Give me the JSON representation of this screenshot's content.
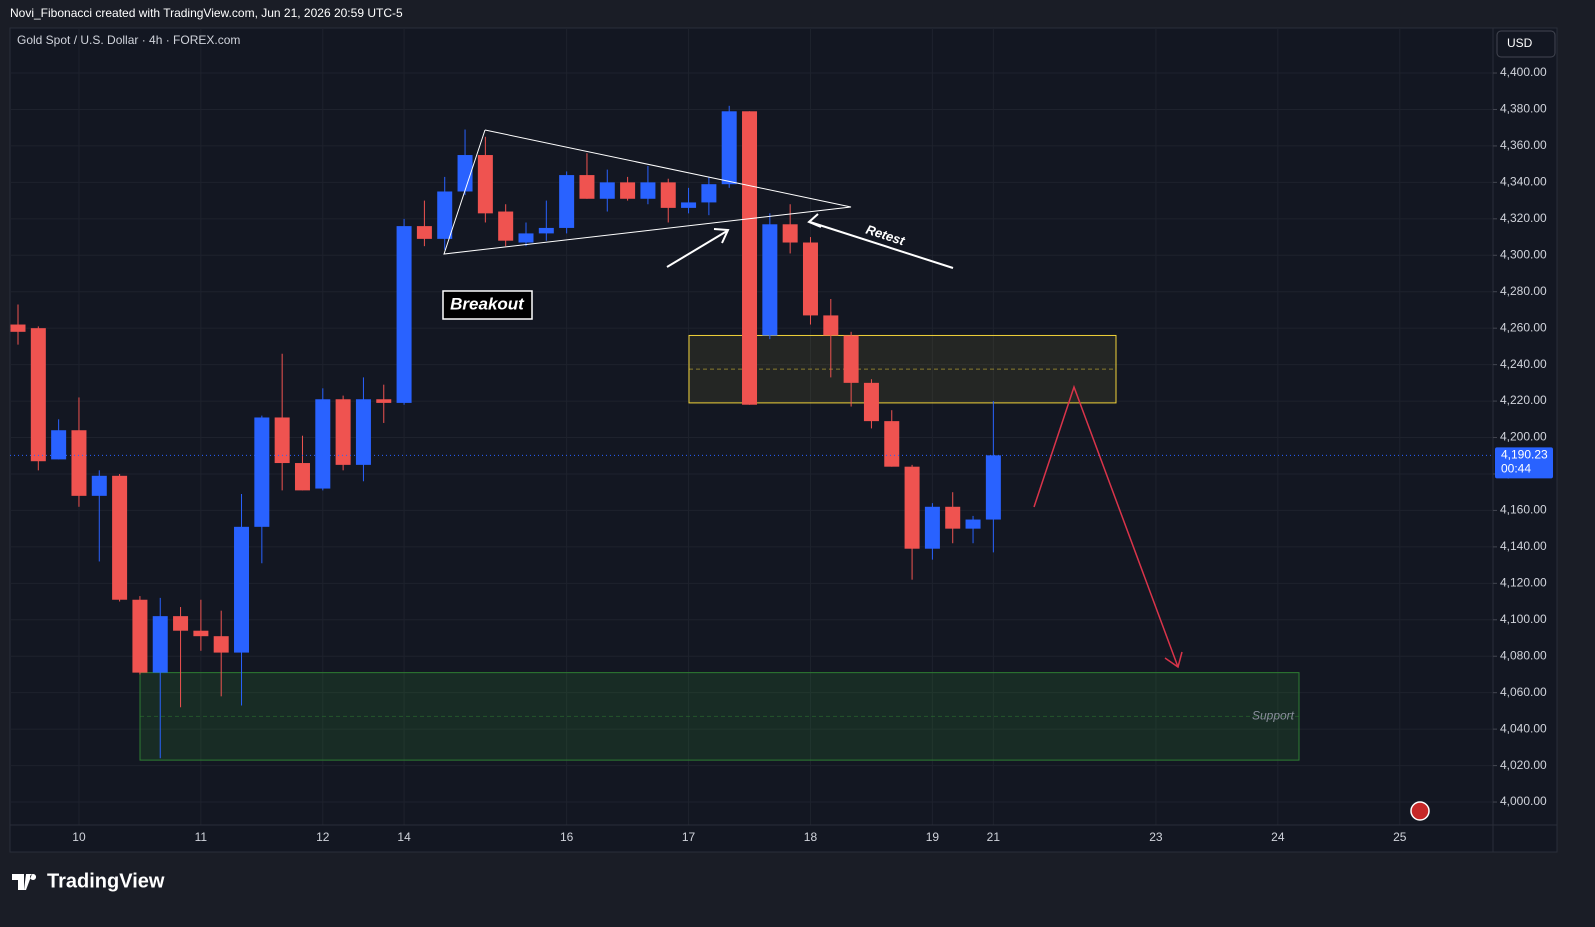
{
  "header": {
    "credit": "Novi_Fibonacci created with TradingView.com, Jun 21, 2026 20:59 UTC-5"
  },
  "chart_data": {
    "type": "candlestick",
    "title": "Gold Spot / U.S. Dollar · 4h · FOREX.com",
    "currency": "USD",
    "up_color": "#2962ff",
    "down_color": "#ef5350",
    "grid": true,
    "categories": [
      null,
      null,
      null,
      "10",
      null,
      null,
      null,
      null,
      null,
      "11",
      null,
      null,
      null,
      null,
      null,
      "12",
      null,
      null,
      null,
      "14",
      null,
      null,
      null,
      null,
      null,
      null,
      null,
      "16",
      null,
      null,
      null,
      null,
      null,
      "17",
      null,
      null,
      null,
      null,
      null,
      "18",
      null,
      null,
      null,
      null,
      null,
      "19",
      null,
      null,
      "21",
      null,
      null,
      null,
      null,
      null,
      null,
      null,
      "23",
      null,
      null,
      null,
      null,
      null,
      "24",
      null,
      null,
      null,
      null,
      null,
      "25",
      null,
      null,
      null,
      null
    ],
    "open": [
      4262,
      4260,
      4188,
      4204,
      4168,
      4179,
      4111,
      4071,
      4102,
      4094,
      4091,
      4082,
      4151,
      4211,
      4186,
      4172,
      4221,
      4185,
      4221,
      4219,
      4316,
      4309,
      4335,
      4355,
      4324,
      4307,
      4312,
      4315,
      4344,
      4331,
      4340,
      4331,
      4340,
      4326,
      4329,
      4339,
      4379,
      4256,
      4317,
      4307,
      4267,
      4256,
      4230,
      4209,
      4184,
      4139,
      4162,
      4150,
      4155,
      null,
      null,
      null,
      null,
      null,
      null,
      null,
      null,
      null,
      null,
      null,
      null,
      null,
      null,
      null,
      null,
      null,
      null,
      null,
      null,
      null,
      null,
      null,
      null
    ],
    "high": [
      4273,
      4261,
      4210,
      4222,
      4182,
      4180,
      4113,
      4112,
      4107,
      4111,
      4105,
      4169,
      4212,
      4246,
      4201,
      4227,
      4223,
      4233,
      4229,
      4320,
      4330,
      4343,
      4369,
      4365,
      4328,
      4318,
      4330,
      4346,
      4356,
      4347,
      4343,
      4349,
      4342,
      4337,
      4343,
      4382,
      4379,
      4323,
      4328,
      4310,
      4276,
      4258,
      4232,
      4215,
      4185,
      4164,
      4170,
      4157,
      4220,
      null,
      null,
      null,
      null,
      null,
      null,
      null,
      null,
      null,
      null,
      null,
      null,
      null,
      null,
      null,
      null,
      null,
      null,
      null,
      null,
      null,
      null,
      null,
      null
    ],
    "low": [
      4251,
      4182,
      4188,
      4162,
      4132,
      4110,
      4070,
      4024,
      4052,
      4083,
      4058,
      4053,
      4131,
      4171,
      4171,
      4171,
      4182,
      4176,
      4208,
      4218,
      4305,
      4303,
      4333,
      4318,
      4305,
      4305,
      4308,
      4312,
      4331,
      4324,
      4330,
      4328,
      4318,
      4323,
      4322,
      4337,
      4218,
      4254,
      4301,
      4262,
      4233,
      4217,
      4205,
      4184,
      4122,
      4133,
      4142,
      4142,
      4137,
      null,
      null,
      null,
      null,
      null,
      null,
      null,
      null,
      null,
      null,
      null,
      null,
      null,
      null,
      null,
      null,
      null,
      null,
      null,
      null,
      null,
      null,
      null,
      null
    ],
    "close": [
      4258,
      4187,
      4204,
      4168,
      4179,
      4111,
      4071,
      4102,
      4094,
      4091,
      4082,
      4151,
      4211,
      4186,
      4171,
      4221,
      4185,
      4221,
      4219,
      4316,
      4309,
      4335,
      4355,
      4323,
      4308,
      4312,
      4315,
      4344,
      4331,
      4340,
      4331,
      4340,
      4326,
      4329,
      4339,
      4379,
      4218,
      4317,
      4307,
      4267,
      4256,
      4230,
      4209,
      4184,
      4139,
      4162,
      4150,
      4155,
      4190.23,
      null,
      null,
      null,
      null,
      null,
      null,
      null,
      null,
      null,
      null,
      null,
      null,
      null,
      null,
      null,
      null,
      null,
      null,
      null,
      null,
      null,
      null,
      null,
      null
    ],
    "last_price": {
      "value": 4190.23,
      "label": "4,190.23"
    },
    "countdown": "00:44",
    "ylim": [
      3987.4,
      4424.7
    ],
    "yticks": [
      {
        "value": 4000,
        "label": "4,000.00"
      },
      {
        "value": 4020,
        "label": "4,020.00"
      },
      {
        "value": 4040,
        "label": "4,040.00"
      },
      {
        "value": 4060,
        "label": "4,060.00"
      },
      {
        "value": 4080,
        "label": "4,080.00"
      },
      {
        "value": 4100,
        "label": "4,100.00"
      },
      {
        "value": 4120,
        "label": "4,120.00"
      },
      {
        "value": 4140,
        "label": "4,140.00"
      },
      {
        "value": 4160,
        "label": "4,160.00"
      },
      {
        "value": 4180,
        "label": "4,180.00"
      },
      {
        "value": 4200,
        "label": "4,200.00"
      },
      {
        "value": 4220,
        "label": "4,220.00"
      },
      {
        "value": 4240,
        "label": "4,240.00"
      },
      {
        "value": 4260,
        "label": "4,260.00"
      },
      {
        "value": 4280,
        "label": "4,280.00"
      },
      {
        "value": 4300,
        "label": "4,300.00"
      },
      {
        "value": 4320,
        "label": "4,320.00"
      },
      {
        "value": 4340,
        "label": "4,340.00"
      },
      {
        "value": 4360,
        "label": "4,360.00"
      },
      {
        "value": 4380,
        "label": "4,380.00"
      },
      {
        "value": 4400,
        "label": "4,400.00"
      }
    ],
    "zones": [
      {
        "top": 4256,
        "bottom": 4219,
        "color": "#f2d33a"
      },
      {
        "top": 4071,
        "bottom": 4023,
        "color": "#2e7d32",
        "label": "Support"
      }
    ],
    "annotations": [
      "Breakout",
      "Retest"
    ]
  },
  "footer": {
    "brand": "TradingView"
  }
}
